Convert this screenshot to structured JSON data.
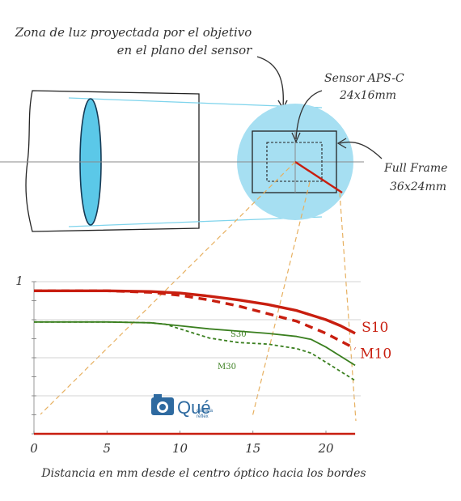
{
  "annotations": {
    "projection_line1": "Zona de luz proyectada por el objetivo",
    "projection_line2": "en el plano del sensor",
    "apsc_line1": "Sensor APS-C",
    "apsc_line2": "24x16mm",
    "ff_line1": "Full Frame",
    "ff_line2": "36x24mm"
  },
  "colors": {
    "lens_fill": "#5bc8e8",
    "circle_fill": "#a6dff2",
    "ray_line": "#7fd4ec",
    "guide_dash": "#e7b060",
    "red": "#c81e0f",
    "green": "#3a7f1f"
  },
  "logo": {
    "name": "Qué cámara réflex",
    "main": "Qué",
    "sub1": "cámara",
    "sub2": "réflex"
  },
  "chart_data": {
    "type": "line",
    "xlabel": "Distancia en mm desde el centro óptico hacia los bordes",
    "ylabel": "",
    "xlim": [
      0,
      22.5
    ],
    "ylim": [
      0,
      1
    ],
    "x_ticks": [
      0,
      5,
      10,
      15,
      20
    ],
    "y_ticks": [
      1
    ],
    "series": [
      {
        "name": "S10",
        "color": "#c81e0f",
        "style": "solid",
        "label_size": "big",
        "x": [
          0,
          5,
          8,
          10,
          12,
          14,
          16,
          18,
          20,
          21,
          22
        ],
        "y": [
          0.94,
          0.94,
          0.935,
          0.925,
          0.905,
          0.88,
          0.85,
          0.81,
          0.75,
          0.71,
          0.66
        ]
      },
      {
        "name": "M10",
        "color": "#c81e0f",
        "style": "dashed",
        "label_size": "big",
        "x": [
          0,
          5,
          8,
          10,
          12,
          14,
          16,
          18,
          20,
          21,
          22
        ],
        "y": [
          0.94,
          0.94,
          0.93,
          0.91,
          0.88,
          0.84,
          0.79,
          0.74,
          0.66,
          0.61,
          0.56
        ]
      },
      {
        "name": "S30",
        "color": "#3a7f1f",
        "style": "solid",
        "label_size": "small",
        "x": [
          0,
          5,
          8,
          10,
          12,
          14,
          16,
          18,
          19,
          20,
          21,
          22
        ],
        "y": [
          0.735,
          0.735,
          0.73,
          0.71,
          0.69,
          0.675,
          0.66,
          0.64,
          0.62,
          0.57,
          0.51,
          0.45
        ]
      },
      {
        "name": "M30",
        "color": "#3a7f1f",
        "style": "dashed",
        "label_size": "small",
        "x": [
          0,
          5,
          8,
          9,
          10,
          12,
          14,
          16,
          18,
          19,
          20,
          21,
          22
        ],
        "y": [
          0.735,
          0.735,
          0.73,
          0.72,
          0.69,
          0.63,
          0.6,
          0.59,
          0.56,
          0.53,
          0.47,
          0.41,
          0.35
        ]
      },
      {
        "name": "",
        "color": "#c81e0f",
        "style": "solid",
        "label_size": "none",
        "x": [
          0,
          22
        ],
        "y": [
          0,
          0
        ]
      }
    ]
  }
}
